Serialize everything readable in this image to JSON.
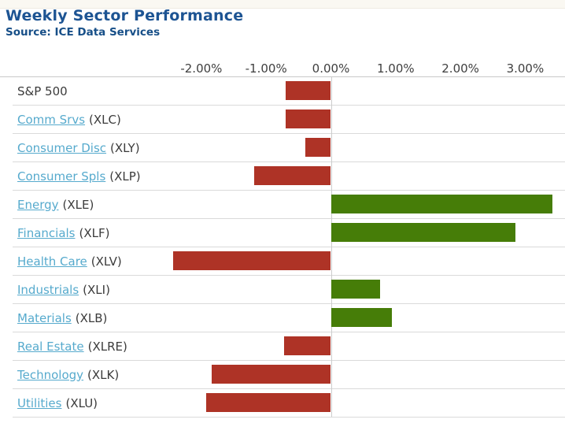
{
  "header": {
    "title": "Weekly Sector Performance",
    "source": "Source: ICE Data Services"
  },
  "colors": {
    "positive_bar": "#467d08",
    "negative_bar": "#ae3326",
    "title_text": "#1d5493",
    "link_text": "#56aacd",
    "gridline": "#cccccc"
  },
  "chart_data": {
    "type": "bar",
    "orientation": "horizontal",
    "title": "Weekly Sector Performance",
    "subtitle": "Source: ICE Data Services",
    "x_unit": "percent",
    "xlim": [
      -2.6,
      3.6
    ],
    "grid": "zero-line-only",
    "x_ticks": [
      {
        "value": -2,
        "label": "-2.00%"
      },
      {
        "value": -1,
        "label": "-1.00%"
      },
      {
        "value": 0,
        "label": "0.00%"
      },
      {
        "value": 1,
        "label": "1.00%"
      },
      {
        "value": 2,
        "label": "2.00%"
      },
      {
        "value": 3,
        "label": "3.00%"
      }
    ],
    "rows": [
      {
        "label": "S&P 500",
        "ticker": "",
        "link": false,
        "value": -0.7
      },
      {
        "label": "Comm Srvs",
        "ticker": "(XLC)",
        "link": true,
        "value": -0.7
      },
      {
        "label": "Consumer Disc",
        "ticker": "(XLY)",
        "link": true,
        "value": -0.39
      },
      {
        "label": "Consumer Spls",
        "ticker": "(XLP)",
        "link": true,
        "value": -1.18
      },
      {
        "label": "Energy",
        "ticker": "(XLE)",
        "link": true,
        "value": 3.42
      },
      {
        "label": "Financials",
        "ticker": "(XLF)",
        "link": true,
        "value": 2.85
      },
      {
        "label": "Health Care",
        "ticker": "(XLV)",
        "link": true,
        "value": -2.44
      },
      {
        "label": "Industrials",
        "ticker": "(XLI)",
        "link": true,
        "value": 0.76
      },
      {
        "label": "Materials",
        "ticker": "(XLB)",
        "link": true,
        "value": 0.94
      },
      {
        "label": "Real Estate",
        "ticker": "(XLRE)",
        "link": true,
        "value": -0.72
      },
      {
        "label": "Technology",
        "ticker": "(XLK)",
        "link": true,
        "value": -1.84
      },
      {
        "label": "Utilities",
        "ticker": "(XLU)",
        "link": true,
        "value": -1.93
      }
    ]
  }
}
